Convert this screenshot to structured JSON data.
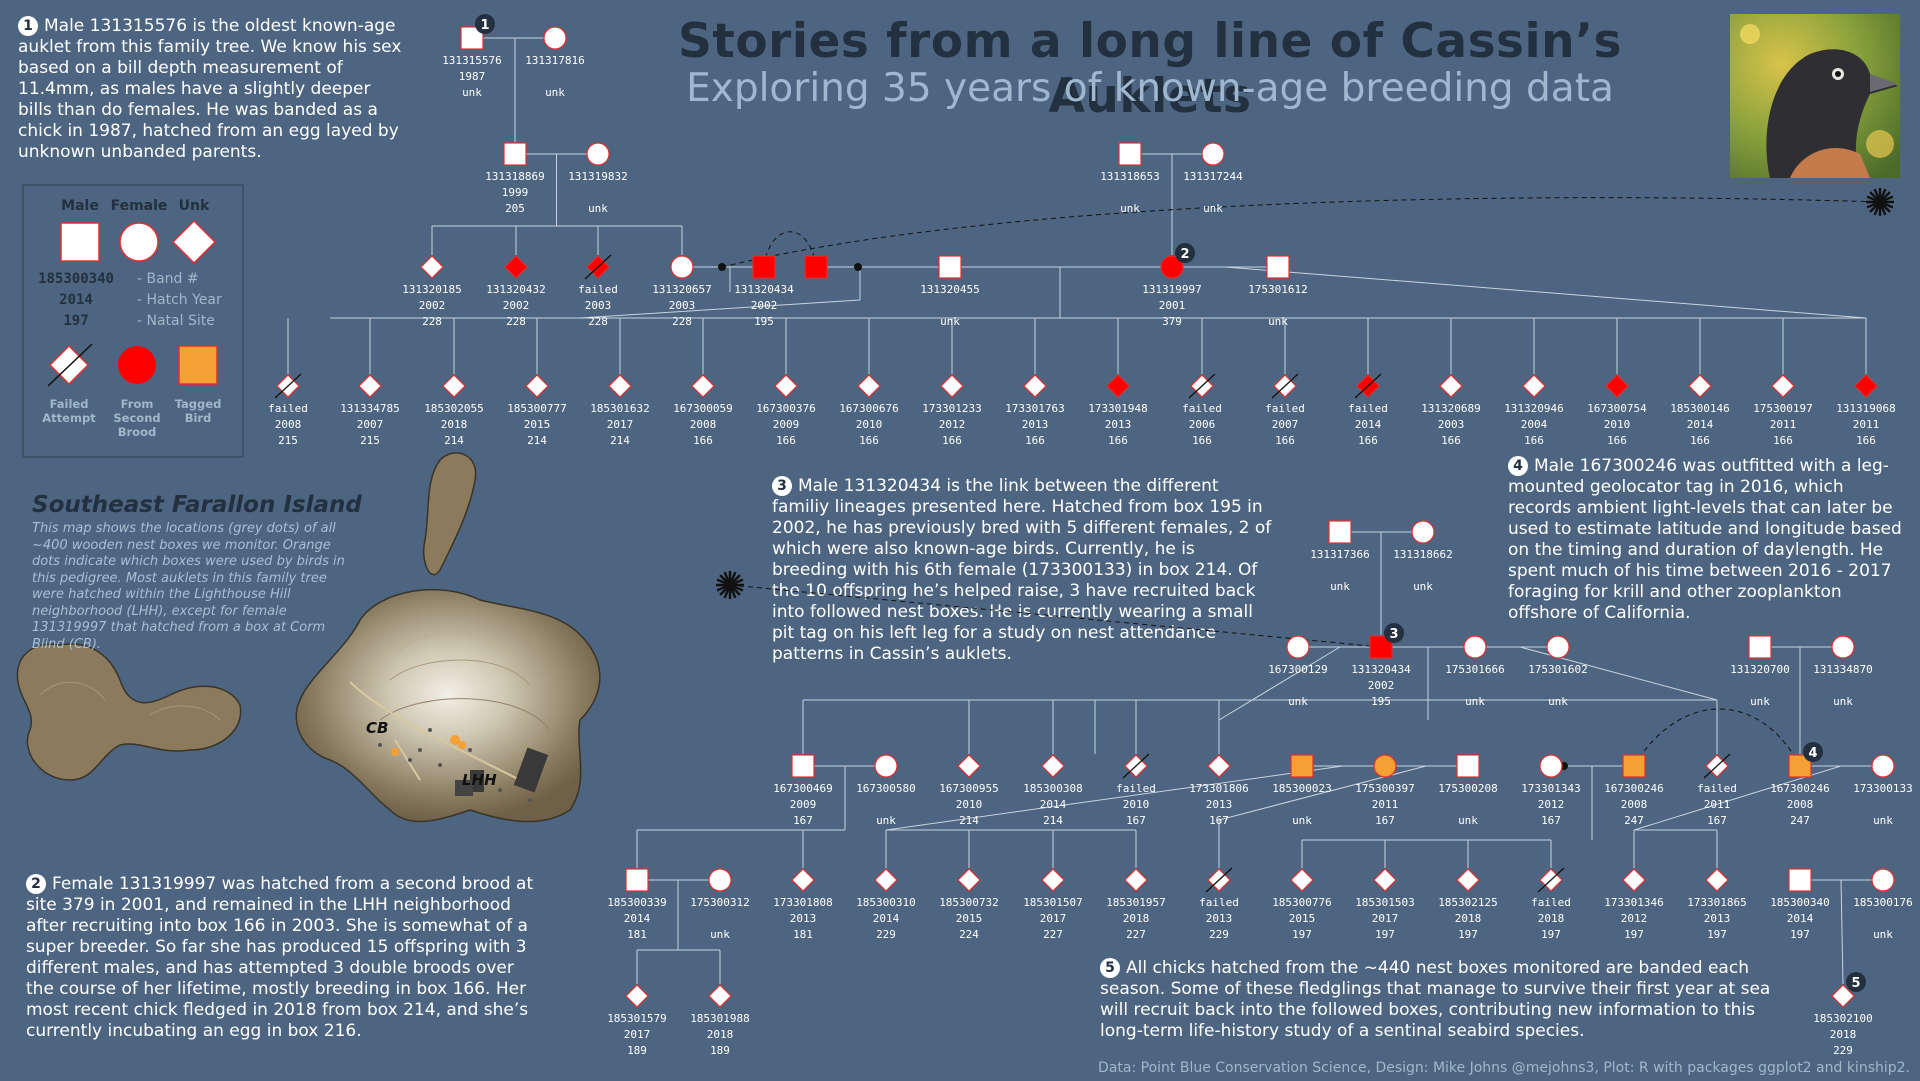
{
  "title": "Stories from a long line of Cassin’s Auklets",
  "subtitle": "Exploring 35 years of known-age breeding data",
  "stories": [
    {
      "num": "1",
      "text": "Male 131315576 is the oldest known-age auklet from this family tree. We know his sex based on a bill depth measurement of 11.4mm, as males have a slightly deeper bills than do females. He was banded as a chick in 1987, hatched from an egg layed by unknown unbanded parents."
    },
    {
      "num": "2",
      "text": "Female 131319997 was hatched from a second brood at site 379 in 2001, and remained in the LHH neighborhood after recruiting into box 166 in 2003. She is somewhat of a super breeder. So far she has produced 15 offspring with 3 different males, and has attempted 3 double broods over the course of her lifetime, mostly breeding in box 166. Her most recent chick fledged in 2018 from box 214, and she’s currently incubating an egg in box 216."
    },
    {
      "num": "3",
      "text": "Male 131320434 is the link between the different familiy lineages presented here. Hatched from box 195 in 2002, he has previously bred with 5 different females, 2 of which were also known-age birds. Currently, he is breeding with his 6th female (173300133) in box 214. Of the 10 offspring he’s helped raise, 3 have recruited back into followed nest boxes. He is currently wearing a small pit tag on his left leg for a study on nest attendance patterns in Cassin’s auklets."
    },
    {
      "num": "4",
      "text": "Male 167300246 was outfitted with a leg-mounted geolocator tag in 2016, which records ambient light-levels that can later be used to estimate latitude and longitude based on the timing and duration of daylength. He spent much of his time between 2016 - 2017 foraging for krill and other zooplankton offshore of California."
    },
    {
      "num": "5",
      "text": "All chicks hatched from the ~440 nest boxes monitored are banded each season. Some of these fledglings that manage to survive their first year at sea will recruit back into the followed boxes, contributing new information to this long-term life-history study of a sentinal seabird species."
    }
  ],
  "legend": {
    "headers": [
      "Male",
      "Female",
      "Unk"
    ],
    "example": [
      "185300340",
      "2014",
      "197"
    ],
    "example_labels": [
      "- Band #",
      "- Hatch Year",
      "- Natal Site"
    ],
    "symbols": [
      "Failed Attempt",
      "From Second Brood",
      "Tagged Bird"
    ]
  },
  "map": {
    "title": "Southeast Farallon Island",
    "description": "This map shows the locations (grey dots) of all ~400 wooden nest boxes we monitor. Orange dots indicate which boxes were used by birds in this pedigree. Most auklets in this family tree were hatched within the Lighthouse Hill neighborhood (LHH), except for female 131319997 that hatched from a box at Corm Blind (CB).",
    "labels": [
      "CB",
      "LHH"
    ]
  },
  "credit": "Data: Point Blue Conservation Science, Design: Mike Johns @mejohns3, Plot: R with packages ggplot2 and kinship2.",
  "colors": {
    "background": "#4d6580",
    "title": "#22303f",
    "second_brood": "#ff0000",
    "tagged": "#f5a033",
    "line": "#c8d3de"
  },
  "nodes": [
    {
      "id": "131315576",
      "sex": "M",
      "band": "131315576",
      "year": "1987",
      "site": "unk",
      "flag": "none",
      "badge": "1"
    },
    {
      "id": "131317816",
      "sex": "F",
      "band": "131317816",
      "year": "",
      "site": "unk",
      "flag": "none"
    },
    {
      "id": "131318869",
      "sex": "M",
      "band": "131318869",
      "year": "1999",
      "site": "205",
      "flag": "none"
    },
    {
      "id": "131319832",
      "sex": "F",
      "band": "131319832",
      "year": "",
      "site": "unk",
      "flag": "none"
    },
    {
      "id": "131318653",
      "sex": "M",
      "band": "131318653",
      "year": "",
      "site": "unk",
      "flag": "none"
    },
    {
      "id": "131317244",
      "sex": "F",
      "band": "131317244",
      "year": "",
      "site": "unk",
      "flag": "none"
    },
    {
      "id": "131320185",
      "sex": "U",
      "band": "131320185",
      "year": "2002",
      "site": "228",
      "flag": "none"
    },
    {
      "id": "131320432",
      "sex": "U",
      "band": "131320432",
      "year": "2002",
      "site": "228",
      "flag": "red"
    },
    {
      "id": "failed-2003",
      "sex": "U",
      "band": "failed",
      "year": "2003",
      "site": "228",
      "flag": "redfailed"
    },
    {
      "id": "131320657",
      "sex": "F",
      "band": "131320657",
      "year": "2003",
      "site": "228",
      "flag": "none"
    },
    {
      "id": "131320434a",
      "sex": "M",
      "band": "131320434",
      "year": "2002",
      "site": "195",
      "flag": "red"
    },
    {
      "id": "131320434b",
      "sex": "M",
      "band": "",
      "year": "",
      "site": "",
      "flag": "red"
    },
    {
      "id": "131320455",
      "sex": "M",
      "band": "131320455",
      "year": "",
      "site": "unk",
      "flag": "none"
    },
    {
      "id": "131319997",
      "sex": "F",
      "band": "131319997",
      "year": "2001",
      "site": "379",
      "flag": "red",
      "badge": "2"
    },
    {
      "id": "175301612",
      "sex": "M",
      "band": "175301612",
      "year": "",
      "site": "unk",
      "flag": "none"
    },
    {
      "id": "c1",
      "sex": "U",
      "band": "failed",
      "year": "2008",
      "site": "215",
      "flag": "failed"
    },
    {
      "id": "c2",
      "sex": "U",
      "band": "131334785",
      "year": "2007",
      "site": "215",
      "flag": "none"
    },
    {
      "id": "c3",
      "sex": "U",
      "band": "185302055",
      "year": "2018",
      "site": "214",
      "flag": "none"
    },
    {
      "id": "c4",
      "sex": "U",
      "band": "185300777",
      "year": "2015",
      "site": "214",
      "flag": "none"
    },
    {
      "id": "c5",
      "sex": "U",
      "band": "185301632",
      "year": "2017",
      "site": "214",
      "flag": "none"
    },
    {
      "id": "c6",
      "sex": "U",
      "band": "167300059",
      "year": "2008",
      "site": "166",
      "flag": "none"
    },
    {
      "id": "c7",
      "sex": "U",
      "band": "167300376",
      "year": "2009",
      "site": "166",
      "flag": "none"
    },
    {
      "id": "c8",
      "sex": "U",
      "band": "167300676",
      "year": "2010",
      "site": "166",
      "flag": "none"
    },
    {
      "id": "c9",
      "sex": "U",
      "band": "173301233",
      "year": "2012",
      "site": "166",
      "flag": "none"
    },
    {
      "id": "c10",
      "sex": "U",
      "band": "173301763",
      "year": "2013",
      "site": "166",
      "flag": "none"
    },
    {
      "id": "c11",
      "sex": "U",
      "band": "173301948",
      "year": "2013",
      "site": "166",
      "flag": "red"
    },
    {
      "id": "c12",
      "sex": "U",
      "band": "failed",
      "year": "2006",
      "site": "166",
      "flag": "failed"
    },
    {
      "id": "c13",
      "sex": "U",
      "band": "failed",
      "year": "2007",
      "site": "166",
      "flag": "failed"
    },
    {
      "id": "c14",
      "sex": "U",
      "band": "failed",
      "year": "2014",
      "site": "166",
      "flag": "redfailed"
    },
    {
      "id": "c15",
      "sex": "U",
      "band": "131320689",
      "year": "2003",
      "site": "166",
      "flag": "none"
    },
    {
      "id": "c16",
      "sex": "U",
      "band": "131320946",
      "year": "2004",
      "site": "166",
      "flag": "none"
    },
    {
      "id": "c17",
      "sex": "U",
      "band": "167300754",
      "year": "2010",
      "site": "166",
      "flag": "red"
    },
    {
      "id": "c18",
      "sex": "U",
      "band": "185300146",
      "year": "2014",
      "site": "166",
      "flag": "none"
    },
    {
      "id": "c19",
      "sex": "U",
      "band": "175300197",
      "year": "2011",
      "site": "166",
      "flag": "none"
    },
    {
      "id": "c20",
      "sex": "U",
      "band": "131319068",
      "year": "2011",
      "site": "166",
      "flag": "red"
    },
    {
      "id": "131317366",
      "sex": "M",
      "band": "131317366",
      "year": "",
      "site": "unk",
      "flag": "none"
    },
    {
      "id": "131318662",
      "sex": "F",
      "band": "131318662",
      "year": "",
      "site": "unk",
      "flag": "none"
    },
    {
      "id": "167300129",
      "sex": "F",
      "band": "167300129",
      "year": "",
      "site": "unk",
      "flag": "none"
    },
    {
      "id": "131320434c",
      "sex": "M",
      "band": "131320434",
      "year": "2002",
      "site": "195",
      "flag": "red",
      "badge": "3"
    },
    {
      "id": "175301666",
      "sex": "F",
      "band": "175301666",
      "year": "",
      "site": "unk",
      "flag": "none"
    },
    {
      "id": "175301602",
      "sex": "F",
      "band": "175301602",
      "year": "",
      "site": "unk",
      "flag": "none"
    },
    {
      "id": "131320700",
      "sex": "M",
      "band": "131320700",
      "year": "",
      "site": "unk",
      "flag": "none"
    },
    {
      "id": "131334870",
      "sex": "F",
      "band": "131334870",
      "year": "",
      "site": "unk",
      "flag": "none"
    },
    {
      "id": "167300469",
      "sex": "M",
      "band": "167300469",
      "year": "2009",
      "site": "167",
      "flag": "none"
    },
    {
      "id": "167300580",
      "sex": "F",
      "band": "167300580",
      "year": "",
      "site": "unk",
      "flag": "none"
    },
    {
      "id": "167300955",
      "sex": "U",
      "band": "167300955",
      "year": "2010",
      "site": "214",
      "flag": "none"
    },
    {
      "id": "185300308",
      "sex": "U",
      "band": "185300308",
      "year": "2014",
      "site": "214",
      "flag": "none"
    },
    {
      "id": "d-failed-2010",
      "sex": "U",
      "band": "failed",
      "year": "2010",
      "site": "167",
      "flag": "failed"
    },
    {
      "id": "173301806",
      "sex": "U",
      "band": "173301806",
      "year": "2013",
      "site": "167",
      "flag": "none"
    },
    {
      "id": "185300023",
      "sex": "M",
      "band": "185300023",
      "year": "",
      "site": "unk",
      "flag": "orange"
    },
    {
      "id": "175300397",
      "sex": "F",
      "band": "175300397",
      "year": "2011",
      "site": "167",
      "flag": "orange"
    },
    {
      "id": "175300208",
      "sex": "M",
      "band": "175300208",
      "year": "",
      "site": "unk",
      "flag": "none"
    },
    {
      "id": "173301343",
      "sex": "F",
      "band": "173301343",
      "year": "2012",
      "site": "167",
      "flag": "none"
    },
    {
      "id": "167300246a",
      "sex": "M",
      "band": "167300246",
      "year": "2008",
      "site": "247",
      "flag": "orange"
    },
    {
      "id": "d-failed-2011",
      "sex": "U",
      "band": "failed",
      "year": "2011",
      "site": "167",
      "flag": "failed"
    },
    {
      "id": "167300246b",
      "sex": "M",
      "band": "167300246",
      "year": "2008",
      "site": "247",
      "flag": "orange",
      "badge": "4"
    },
    {
      "id": "173300133",
      "sex": "F",
      "band": "173300133",
      "year": "",
      "site": "unk",
      "flag": "none"
    },
    {
      "id": "185300339",
      "sex": "M",
      "band": "185300339",
      "year": "2014",
      "site": "181",
      "flag": "none"
    },
    {
      "id": "175300312",
      "sex": "F",
      "band": "175300312",
      "year": "",
      "site": "unk",
      "flag": "none"
    },
    {
      "id": "173301808",
      "sex": "U",
      "band": "173301808",
      "year": "2013",
      "site": "181",
      "flag": "none"
    },
    {
      "id": "185300310",
      "sex": "U",
      "band": "185300310",
      "year": "2014",
      "site": "229",
      "flag": "none"
    },
    {
      "id": "185300732",
      "sex": "U",
      "band": "185300732",
      "year": "2015",
      "site": "224",
      "flag": "none"
    },
    {
      "id": "185301507",
      "sex": "U",
      "band": "185301507",
      "year": "2017",
      "site": "227",
      "flag": "none"
    },
    {
      "id": "185301957",
      "sex": "U",
      "band": "185301957",
      "year": "2018",
      "site": "227",
      "flag": "none"
    },
    {
      "id": "e-failed-2013",
      "sex": "U",
      "band": "failed",
      "year": "2013",
      "site": "229",
      "flag": "failed"
    },
    {
      "id": "185300776",
      "sex": "U",
      "band": "185300776",
      "year": "2015",
      "site": "197",
      "flag": "none"
    },
    {
      "id": "185301503",
      "sex": "U",
      "band": "185301503",
      "year": "2017",
      "site": "197",
      "flag": "none"
    },
    {
      "id": "185302125",
      "sex": "U",
      "band": "185302125",
      "year": "2018",
      "site": "197",
      "flag": "none"
    },
    {
      "id": "e-failed-2018",
      "sex": "U",
      "band": "failed",
      "year": "2018",
      "site": "197",
      "flag": "failed"
    },
    {
      "id": "173301346",
      "sex": "U",
      "band": "173301346",
      "year": "2012",
      "site": "197",
      "flag": "none"
    },
    {
      "id": "173301865",
      "sex": "U",
      "band": "173301865",
      "year": "2013",
      "site": "197",
      "flag": "none"
    },
    {
      "id": "185300340",
      "sex": "M",
      "band": "185300340",
      "year": "2014",
      "site": "197",
      "flag": "none"
    },
    {
      "id": "185300176",
      "sex": "F",
      "band": "185300176",
      "year": "",
      "site": "unk",
      "flag": "none"
    },
    {
      "id": "185301579",
      "sex": "U",
      "band": "185301579",
      "year": "2017",
      "site": "189",
      "flag": "none"
    },
    {
      "id": "185301988",
      "sex": "U",
      "band": "185301988",
      "year": "2018",
      "site": "189",
      "flag": "none"
    },
    {
      "id": "185302100",
      "sex": "U",
      "band": "185302100",
      "year": "2018",
      "site": "229",
      "flag": "none",
      "badge": "5"
    }
  ]
}
